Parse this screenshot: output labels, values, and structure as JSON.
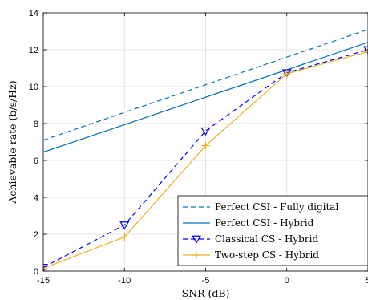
{
  "chart_data": {
    "type": "line",
    "xlabel": "SNR (dB)",
    "ylabel": "Achievable rate (b/s/Hz)",
    "xlim": [
      -15,
      5
    ],
    "ylim": [
      0,
      14
    ],
    "xticks": [
      -15,
      -10,
      -5,
      0,
      5
    ],
    "yticks": [
      0,
      2,
      4,
      6,
      8,
      10,
      12,
      14
    ],
    "grid": true,
    "legend_position": "bottom-right",
    "series": [
      {
        "name": "Perfect CSI - Fully digital",
        "color": "#0072BD",
        "style": "dashed",
        "marker": "none",
        "x": [
          -15,
          5
        ],
        "y": [
          7.1,
          13.1
        ]
      },
      {
        "name": "Perfect CSI - Hybrid",
        "color": "#0072BD",
        "style": "solid",
        "marker": "none",
        "x": [
          -15,
          5
        ],
        "y": [
          6.45,
          12.4
        ]
      },
      {
        "name": "Classical CS - Hybrid",
        "color": "#0000FF",
        "style": "dashed",
        "marker": "triangle-down",
        "x": [
          -15,
          -10,
          -5,
          0,
          5
        ],
        "y": [
          0.2,
          2.5,
          7.6,
          10.75,
          12.0
        ]
      },
      {
        "name": "Two-step CS - Hybrid",
        "color": "#EDB120",
        "style": "solid",
        "marker": "plus",
        "x": [
          -15,
          -10,
          -5,
          0,
          5
        ],
        "y": [
          0.15,
          1.85,
          6.8,
          10.7,
          11.9
        ]
      }
    ]
  }
}
